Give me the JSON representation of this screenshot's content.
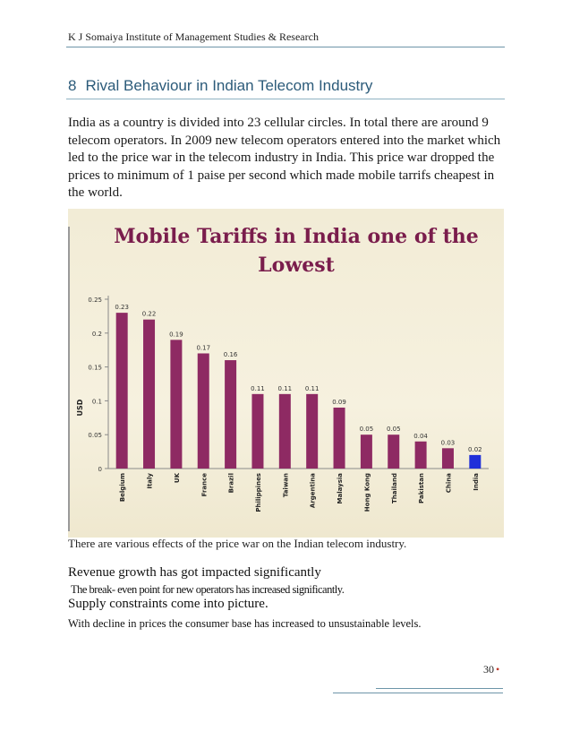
{
  "header": {
    "institution": "K J Somaiya Institute of Management Studies & Research"
  },
  "section": {
    "number": "8",
    "title": "Rival Behaviour in Indian Telecom Industry"
  },
  "intro": {
    "paragraph": "India as a country is divided into 23 cellular circles. In total there are around 9 telecom operators. In 2009 new telecom operators entered into the market which led to the price war in the telecom industry in India. This price war dropped the prices to minimum of 1 paise per second which made mobile tarrifs cheapest in the world."
  },
  "chart_data": {
    "type": "bar",
    "title": "Mobile Tariffs in India one of the Lowest",
    "ylabel": "USD",
    "xlabel": "",
    "ylim": [
      0,
      0.25
    ],
    "yticks": [
      "0",
      "0.05",
      "0.1",
      "0.15",
      "0.2",
      "0.25"
    ],
    "categories": [
      "Belgium",
      "Italy",
      "UK",
      "France",
      "Brazil",
      "Philippines",
      "Taiwan",
      "Argentina",
      "Malaysia",
      "Hong Kong",
      "Thailand",
      "Pakistan",
      "China",
      "India"
    ],
    "values": [
      0.23,
      0.22,
      0.19,
      0.17,
      0.16,
      0.11,
      0.11,
      0.11,
      0.09,
      0.05,
      0.05,
      0.04,
      0.03,
      0.02
    ],
    "labels": [
      "0.23",
      "0.22",
      "0.19",
      "0.17",
      "0.16",
      "0.11",
      "0.11",
      "0.11",
      "0.09",
      "0.05",
      "0.05",
      "0.04",
      "0.03",
      "0.02"
    ],
    "colors": {
      "bar": "#8e2a63",
      "highlight": "#1f2fd9",
      "title": "#7a1d4c"
    },
    "highlight_category": "India",
    "grid": false,
    "legend": "none"
  },
  "caption": "There are various effects of the price war on the Indian telecom industry.",
  "effects": [
    {
      "title": "Revenue growth has got impacted significantly",
      "body": "The break- even point for new operators has increased significantly."
    },
    {
      "title": "Supply constraints come into picture.",
      "body": "With decline in prices the consumer base has increased to unsustainable levels."
    }
  ],
  "footer": {
    "page": "30",
    "dot": "•"
  }
}
